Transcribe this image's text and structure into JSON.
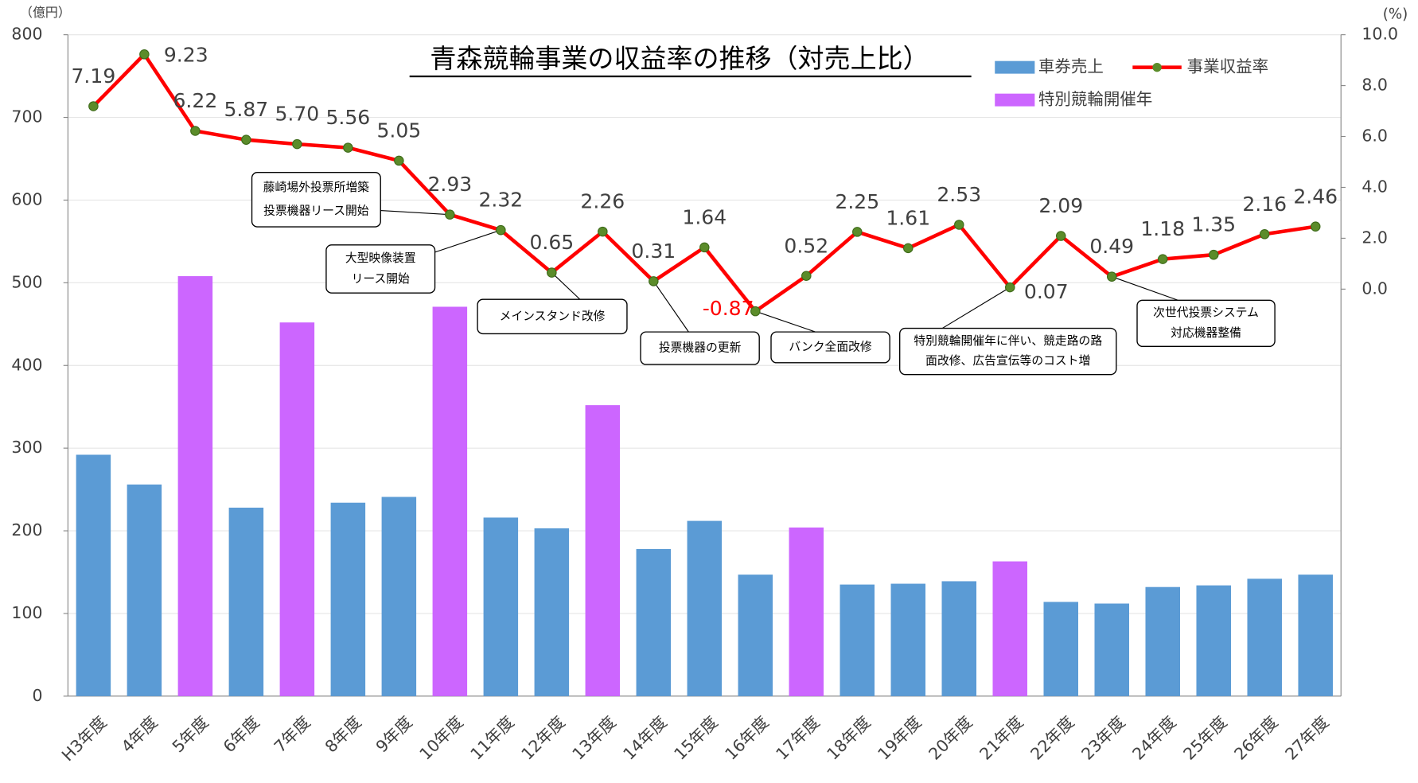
{
  "chart_data": {
    "type": "bar",
    "title": "青森競輪事業の収益率の推移（対売上比）",
    "y_unit": "（億円）",
    "y2_unit": "(%)",
    "categories": [
      "H3年度",
      "4年度",
      "5年度",
      "6年度",
      "7年度",
      "8年度",
      "9年度",
      "10年度",
      "11年度",
      "12年度",
      "13年度",
      "14年度",
      "15年度",
      "16年度",
      "17年度",
      "18年度",
      "19年度",
      "20年度",
      "21年度",
      "22年度",
      "23年度",
      "24年度",
      "25年度",
      "26年度",
      "27年度"
    ],
    "series": [
      {
        "name": "車券売上",
        "type": "bar",
        "color": "#5b9bd5",
        "values": [
          292,
          256,
          null,
          228,
          null,
          234,
          241,
          null,
          216,
          203,
          null,
          178,
          212,
          147,
          null,
          135,
          136,
          139,
          null,
          114,
          112,
          132,
          134,
          142,
          147
        ]
      },
      {
        "name": "特別競輪開催年",
        "type": "bar",
        "color": "#cc66ff",
        "values": [
          null,
          null,
          508,
          null,
          452,
          null,
          null,
          471,
          null,
          null,
          352,
          null,
          null,
          null,
          204,
          null,
          null,
          null,
          163,
          null,
          null,
          null,
          null,
          null,
          null
        ]
      },
      {
        "name": "事業収益率",
        "type": "line",
        "axis": "y2",
        "color": "#ff0000",
        "marker_color": "#5b8c2a",
        "values": [
          7.19,
          9.23,
          6.22,
          5.87,
          5.7,
          5.56,
          5.05,
          2.93,
          2.32,
          0.65,
          2.26,
          0.31,
          1.64,
          -0.87,
          0.52,
          2.25,
          1.61,
          2.53,
          0.07,
          2.09,
          0.49,
          1.18,
          1.35,
          2.16,
          2.46
        ],
        "value_labels": [
          "7.19",
          "9.23",
          "6.22",
          "5.87",
          "5.70",
          "5.56",
          "5.05",
          "2.93",
          "2.32",
          "0.65",
          "2.26",
          "0.31",
          "1.64",
          "-0.87",
          "0.52",
          "2.25",
          "1.61",
          "2.53",
          "0.07",
          "2.09",
          "0.49",
          "1.18",
          "1.35",
          "2.16",
          "2.46"
        ]
      }
    ],
    "ylim": [
      0,
      800
    ],
    "yticks": [
      0,
      100,
      200,
      300,
      400,
      500,
      600,
      700,
      800
    ],
    "y2lim": [
      -16,
      10
    ],
    "y2ticks": [
      {
        "value": 0,
        "label": "0.0"
      },
      {
        "value": 2,
        "label": "2.0"
      },
      {
        "value": 4,
        "label": "4.0"
      },
      {
        "value": 6,
        "label": "6.0"
      },
      {
        "value": 8,
        "label": "8.0"
      },
      {
        "value": 10,
        "label": "10.0"
      }
    ],
    "grid": true,
    "negative_label_color": "#ff0000",
    "annotations": [
      {
        "lines": [
          "藤崎場外投票所増築",
          "投票機器リース開始"
        ]
      },
      {
        "lines": [
          "大型映像装置",
          "リース開始"
        ]
      },
      {
        "lines": [
          "メインスタンド改修"
        ]
      },
      {
        "lines": [
          "投票機器の更新"
        ]
      },
      {
        "lines": [
          "バンク全面改修"
        ]
      },
      {
        "lines": [
          "特別競輪開催年に伴い、競走路の路",
          "面改修、広告宣伝等のコスト増"
        ]
      },
      {
        "lines": [
          "次世代投票システム",
          "対応機器整備"
        ]
      }
    ]
  }
}
